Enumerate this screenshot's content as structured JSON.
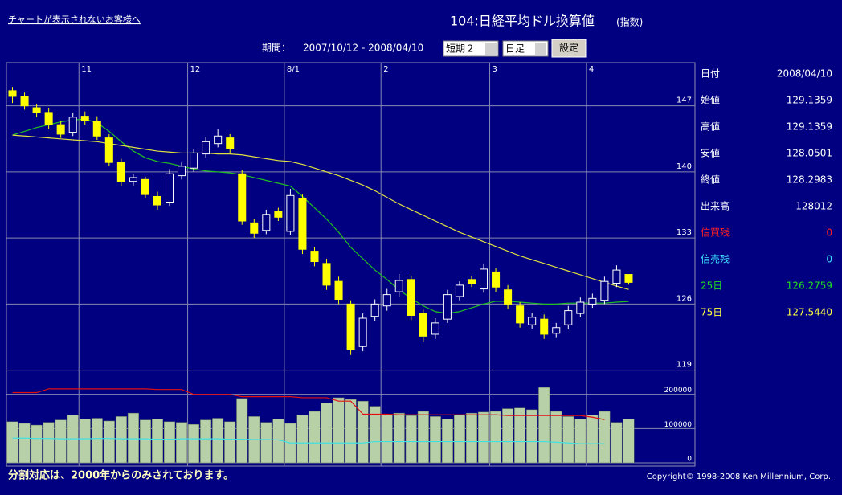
{
  "header": {
    "link": "チャートが表示されないお客様へ",
    "title": "104:日経平均ドル換算値",
    "title_note": "(指数)",
    "period_label": "期間：",
    "period": "2007/10/12 - 2008/04/10",
    "select_term": "短期２",
    "select_span": "日足",
    "button": "設定"
  },
  "info": [
    {
      "label": "日付",
      "value": "2008/04/10",
      "color": "#ffffff"
    },
    {
      "label": "始値",
      "value": "129.1359",
      "color": "#ffffff"
    },
    {
      "label": "高値",
      "value": "129.1359",
      "color": "#ffffff"
    },
    {
      "label": "安値",
      "value": "128.0501",
      "color": "#ffffff"
    },
    {
      "label": "終値",
      "value": "128.2983",
      "color": "#ffffff"
    },
    {
      "label": "出来高",
      "value": "128012",
      "color": "#ffffff"
    },
    {
      "label": "信買残",
      "value": "0",
      "color": "#ff2020"
    },
    {
      "label": "信売残",
      "value": "0",
      "color": "#40e0ff"
    },
    {
      "label": "25日",
      "value": "126.2759",
      "color": "#20e020"
    },
    {
      "label": "75日",
      "value": "127.5440",
      "color": "#ffff40"
    }
  ],
  "footer": {
    "note": "分割対応は、2000年からのみされております。",
    "copyright": "Copyright© 1998-2008 Ken Millennium, Corp."
  },
  "chart_data": {
    "type": "candlestick",
    "categories": [
      null,
      null,
      null,
      null,
      null,
      null,
      "11",
      null,
      null,
      null,
      null,
      null,
      null,
      null,
      null,
      "12",
      null,
      null,
      null,
      null,
      null,
      null,
      null,
      "8/1",
      null,
      null,
      null,
      null,
      null,
      null,
      null,
      "2",
      null,
      null,
      null,
      null,
      null,
      null,
      null,
      null,
      "3",
      null,
      null,
      null,
      null,
      null,
      null,
      null,
      "4",
      null,
      null,
      null
    ],
    "open": [
      148.6,
      148.0,
      146.8,
      146.3,
      145.0,
      144.2,
      145.9,
      145.4,
      143.6,
      141.0,
      139.0,
      139.2,
      137.4,
      136.8,
      139.6,
      140.4,
      141.9,
      143.0,
      143.6,
      139.8,
      134.6,
      133.8,
      135.8,
      133.7,
      137.2,
      131.6,
      130.3,
      128.4,
      126.0,
      121.5,
      124.7,
      125.8,
      127.3,
      128.6,
      125.0,
      122.8,
      124.4,
      126.8,
      128.6,
      127.6,
      129.4,
      127.5,
      125.8,
      123.8,
      124.4,
      122.9,
      123.8,
      125.0,
      126.0,
      126.4,
      128.2,
      129.1359
    ],
    "high": [
      149.0,
      148.4,
      147.2,
      146.8,
      145.4,
      146.3,
      146.4,
      145.9,
      144.0,
      141.4,
      139.8,
      139.5,
      137.9,
      140.3,
      141.0,
      142.4,
      143.7,
      144.5,
      144.0,
      140.2,
      135.0,
      136.0,
      136.2,
      138.2,
      137.6,
      132.0,
      130.8,
      128.9,
      126.4,
      125.0,
      126.5,
      127.6,
      129.2,
      129.0,
      125.4,
      124.5,
      127.5,
      128.4,
      129.0,
      130.3,
      129.8,
      128.0,
      126.2,
      125.1,
      124.9,
      124.0,
      125.8,
      126.7,
      127.1,
      128.9,
      130.1,
      129.1359
    ],
    "low": [
      147.3,
      146.6,
      145.8,
      144.5,
      143.6,
      143.8,
      145.0,
      143.4,
      140.6,
      138.5,
      138.5,
      137.2,
      136.0,
      136.4,
      139.2,
      140.0,
      141.5,
      142.6,
      142.0,
      134.4,
      133.0,
      133.4,
      134.8,
      133.3,
      131.3,
      130.0,
      127.5,
      126.0,
      120.6,
      121.0,
      124.2,
      125.3,
      126.8,
      124.3,
      122.0,
      122.3,
      124.0,
      126.4,
      127.8,
      127.2,
      127.3,
      125.5,
      123.5,
      123.4,
      122.3,
      122.4,
      123.3,
      124.6,
      125.6,
      126.0,
      127.8,
      128.0501
    ],
    "close": [
      148.0,
      147.0,
      146.3,
      145.0,
      144.0,
      145.8,
      145.4,
      143.8,
      141.0,
      139.0,
      139.4,
      137.6,
      136.5,
      139.8,
      140.6,
      142.0,
      143.2,
      143.8,
      142.5,
      134.8,
      133.5,
      135.5,
      135.2,
      137.5,
      131.8,
      130.5,
      128.0,
      126.5,
      121.2,
      124.5,
      126.0,
      127.0,
      128.5,
      124.8,
      122.6,
      124.0,
      127.0,
      128.0,
      128.2,
      129.7,
      127.8,
      126.0,
      124.0,
      124.6,
      122.8,
      123.5,
      125.3,
      126.2,
      126.6,
      128.4,
      129.6,
      128.2983
    ],
    "up_color": "#ffffff",
    "down_color": "#ffff00",
    "ylim": [
      118.2,
      151.4
    ],
    "yticks": [
      119,
      126,
      133,
      140,
      147
    ],
    "grid": true,
    "lines": [
      {
        "color": "#20c020",
        "values": [
          143.9,
          144.3,
          144.7,
          145.0,
          145.3,
          145.5,
          145.6,
          145.2,
          144.3,
          143.2,
          142.2,
          141.5,
          141.1,
          140.9,
          140.6,
          140.3,
          140.1,
          140.0,
          139.9,
          139.7,
          139.4,
          139.1,
          138.8,
          138.5,
          137.4,
          136.2,
          135.0,
          133.6,
          132.0,
          130.8,
          129.6,
          128.6,
          127.5,
          126.6,
          125.8,
          125.2,
          125.0,
          125.2,
          125.6,
          126.0,
          126.3,
          126.3,
          126.2,
          126.1,
          126.0,
          126.0,
          126.1,
          126.1,
          126.1,
          126.1,
          126.2,
          126.2759
        ]
      },
      {
        "color": "#e0e040",
        "values": [
          143.9,
          143.8,
          143.7,
          143.6,
          143.5,
          143.4,
          143.3,
          143.2,
          143.0,
          142.8,
          142.6,
          142.4,
          142.2,
          142.1,
          142.0,
          142.0,
          142.0,
          141.9,
          141.9,
          141.8,
          141.6,
          141.4,
          141.2,
          141.1,
          140.8,
          140.4,
          140.0,
          139.6,
          139.1,
          138.6,
          138.0,
          137.3,
          136.6,
          136.0,
          135.4,
          134.8,
          134.2,
          133.6,
          133.1,
          132.6,
          132.1,
          131.6,
          131.1,
          130.7,
          130.3,
          129.9,
          129.5,
          129.1,
          128.7,
          128.3,
          127.9,
          127.544
        ]
      }
    ],
    "volume": {
      "color": "#b8d0a8",
      "values": [
        120000,
        115000,
        110000,
        118000,
        125000,
        140000,
        128000,
        130000,
        122000,
        135000,
        145000,
        125000,
        128000,
        120000,
        118000,
        112000,
        125000,
        130000,
        120000,
        188000,
        135000,
        118000,
        128000,
        115000,
        140000,
        150000,
        175000,
        190000,
        185000,
        180000,
        165000,
        140000,
        145000,
        138000,
        150000,
        135000,
        128000,
        140000,
        145000,
        148000,
        150000,
        158000,
        160000,
        155000,
        220000,
        150000,
        135000,
        128000,
        140000,
        150000,
        118000,
        128012
      ],
      "ylim": [
        0,
        225000
      ],
      "yticks": [
        0,
        100000,
        200000
      ],
      "lines": [
        {
          "color": "#e01010",
          "values": [
            205000,
            205000,
            205000,
            216000,
            216000,
            216000,
            216000,
            216000,
            216000,
            216000,
            216000,
            216000,
            214000,
            214000,
            214000,
            200000,
            200000,
            200000,
            200000,
            193000,
            193000,
            193000,
            193000,
            193000,
            190000,
            190000,
            190000,
            180000,
            180000,
            142000,
            142000,
            142000,
            140000,
            140000,
            140000,
            140000,
            140000,
            140000,
            140000,
            140000,
            140000,
            138000,
            138000,
            138000,
            138000,
            138000,
            138000,
            138000,
            133000,
            126000,
            null,
            null
          ]
        },
        {
          "color": "#40e0e0",
          "values": [
            72000,
            72000,
            71000,
            71000,
            70000,
            70000,
            70000,
            71000,
            71000,
            70000,
            70000,
            70000,
            69000,
            69000,
            70000,
            70000,
            70000,
            70000,
            69000,
            69000,
            68000,
            68000,
            67000,
            58000,
            58000,
            58000,
            58000,
            58000,
            58000,
            58000,
            62000,
            62000,
            62000,
            62000,
            62000,
            62000,
            62000,
            62000,
            62000,
            62000,
            62000,
            62000,
            62000,
            62000,
            62000,
            60000,
            58000,
            56000,
            56000,
            56000,
            null,
            null
          ]
        }
      ]
    }
  }
}
